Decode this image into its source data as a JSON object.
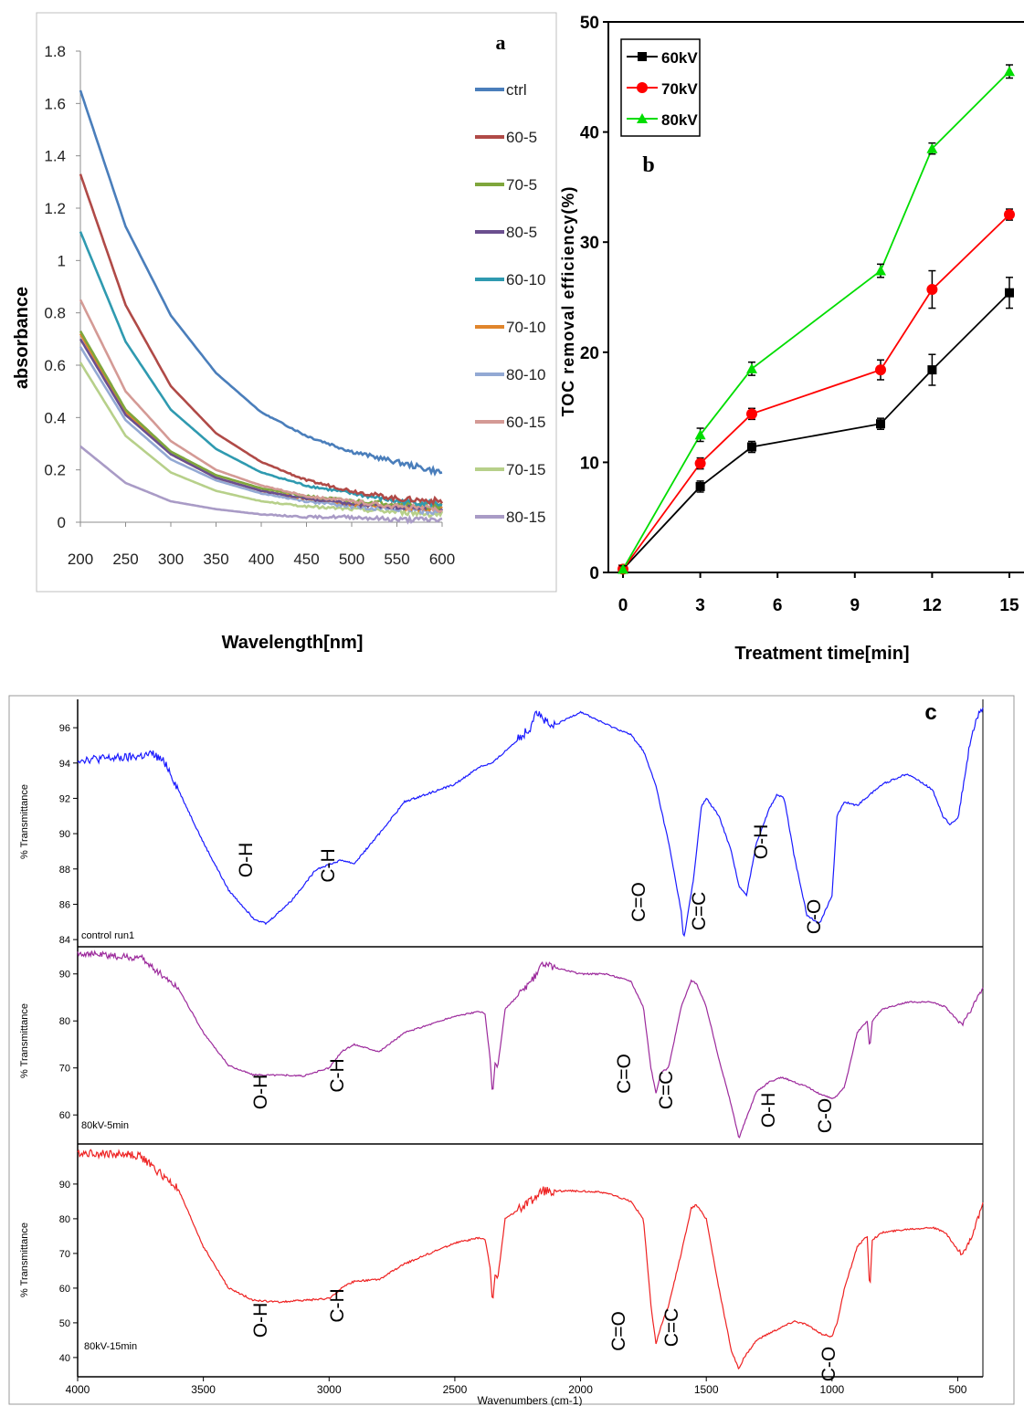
{
  "chart_data": [
    {
      "panel": "a",
      "type": "line",
      "xlabel": "Wavelength[nm]",
      "ylabel": "absorbance",
      "xlim": [
        200,
        600
      ],
      "ylim": [
        0,
        1.8
      ],
      "xticks": [
        "200",
        "250",
        "300",
        "350",
        "400",
        "450",
        "500",
        "550",
        "600"
      ],
      "yticks": [
        "0",
        "0.2",
        "0.4",
        "0.6",
        "0.8",
        "1",
        "1.2",
        "1.4",
        "1.6",
        "1.8"
      ],
      "grid": false,
      "legend_position": "right",
      "series": [
        {
          "name": "ctrl",
          "color": "#4a7ebb",
          "x": [
            200,
            250,
            300,
            350,
            400,
            450,
            500,
            550,
            600
          ],
          "y": [
            1.65,
            1.13,
            0.79,
            0.57,
            0.42,
            0.33,
            0.27,
            0.23,
            0.19
          ]
        },
        {
          "name": "60-5",
          "color": "#b04a47",
          "x": [
            200,
            250,
            300,
            350,
            400,
            450,
            500,
            550,
            600
          ],
          "y": [
            1.33,
            0.83,
            0.52,
            0.34,
            0.23,
            0.16,
            0.12,
            0.09,
            0.08
          ]
        },
        {
          "name": "70-5",
          "color": "#7fa63c",
          "x": [
            200,
            250,
            300,
            350,
            400,
            450,
            500,
            550,
            600
          ],
          "y": [
            0.73,
            0.43,
            0.27,
            0.18,
            0.13,
            0.1,
            0.08,
            0.07,
            0.06
          ]
        },
        {
          "name": "80-5",
          "color": "#6b4f8f",
          "x": [
            200,
            250,
            300,
            350,
            400,
            450,
            500,
            550,
            600
          ],
          "y": [
            0.7,
            0.41,
            0.26,
            0.17,
            0.12,
            0.09,
            0.07,
            0.06,
            0.05
          ]
        },
        {
          "name": "60-10",
          "color": "#2f9ab0",
          "x": [
            200,
            250,
            300,
            350,
            400,
            450,
            500,
            550,
            600
          ],
          "y": [
            1.11,
            0.69,
            0.43,
            0.28,
            0.19,
            0.14,
            0.11,
            0.08,
            0.07
          ]
        },
        {
          "name": "70-10",
          "color": "#e0852c",
          "x": [
            200,
            250,
            300,
            350,
            400,
            450,
            500,
            550,
            600
          ],
          "y": [
            0.72,
            0.42,
            0.26,
            0.17,
            0.12,
            0.09,
            0.07,
            0.06,
            0.05
          ]
        },
        {
          "name": "80-10",
          "color": "#93a9d4",
          "x": [
            200,
            250,
            300,
            350,
            400,
            450,
            500,
            550,
            600
          ],
          "y": [
            0.67,
            0.39,
            0.24,
            0.16,
            0.11,
            0.08,
            0.06,
            0.05,
            0.04
          ]
        },
        {
          "name": "60-15",
          "color": "#d49a95",
          "x": [
            200,
            250,
            300,
            350,
            400,
            450,
            500,
            550,
            600
          ],
          "y": [
            0.85,
            0.5,
            0.31,
            0.2,
            0.14,
            0.1,
            0.08,
            0.06,
            0.05
          ]
        },
        {
          "name": "70-15",
          "color": "#b7d08a",
          "x": [
            200,
            250,
            300,
            350,
            400,
            450,
            500,
            550,
            600
          ],
          "y": [
            0.61,
            0.33,
            0.19,
            0.12,
            0.08,
            0.06,
            0.05,
            0.04,
            0.03
          ]
        },
        {
          "name": "80-15",
          "color": "#a99bc6",
          "x": [
            200,
            250,
            300,
            350,
            400,
            450,
            500,
            550,
            600
          ],
          "y": [
            0.29,
            0.15,
            0.08,
            0.05,
            0.03,
            0.02,
            0.02,
            0.01,
            0.01
          ]
        }
      ]
    },
    {
      "panel": "b",
      "type": "line",
      "xlabel": "Treatment time[min]",
      "ylabel": "TOC removal efficiency(%)",
      "xlim": [
        0,
        15
      ],
      "ylim": [
        0,
        50
      ],
      "xticks": [
        "0",
        "3",
        "6",
        "9",
        "12",
        "15"
      ],
      "yticks": [
        "0",
        "10",
        "20",
        "30",
        "40",
        "50"
      ],
      "grid": false,
      "legend_position": "top-left",
      "series": [
        {
          "name": "60kV",
          "color": "#000000",
          "marker": "square",
          "x": [
            0,
            3,
            5,
            10,
            12,
            15
          ],
          "y": [
            0.3,
            7.8,
            11.4,
            13.5,
            18.4,
            25.4
          ],
          "err": [
            0.3,
            0.5,
            0.5,
            0.5,
            1.4,
            1.4
          ]
        },
        {
          "name": "70kV",
          "color": "#ff0000",
          "marker": "circle",
          "x": [
            0,
            3,
            5,
            10,
            12,
            15
          ],
          "y": [
            0.3,
            9.9,
            14.4,
            18.4,
            25.7,
            32.5
          ],
          "err": [
            0.3,
            0.5,
            0.5,
            0.9,
            1.7,
            0.5
          ]
        },
        {
          "name": "80kV",
          "color": "#00dd00",
          "marker": "triangle",
          "x": [
            0,
            3,
            5,
            10,
            12,
            15
          ],
          "y": [
            0.3,
            12.5,
            18.5,
            27.4,
            38.5,
            45.5
          ],
          "err": [
            0.3,
            0.6,
            0.6,
            0.6,
            0.5,
            0.6
          ]
        }
      ]
    },
    {
      "panel": "c",
      "type": "line",
      "xlabel": "Wavenumbers (cm-1)",
      "xlim": [
        4000,
        400
      ],
      "xticks": [
        "4000",
        "3500",
        "3000",
        "2500",
        "2000",
        "1500",
        "1000",
        "500"
      ],
      "grid": false,
      "subplots": [
        {
          "label": "control run1",
          "ylabel": "% Transmittance",
          "color": "#1a1aff",
          "ylim": [
            83.8,
            97.4
          ],
          "yticks": [
            "84",
            "86",
            "88",
            "90",
            "92",
            "94",
            "96"
          ],
          "x": [
            4000,
            3800,
            3700,
            3650,
            3500,
            3400,
            3300,
            3250,
            3150,
            3050,
            2950,
            2900,
            2800,
            2700,
            2500,
            2400,
            2350,
            2200,
            2180,
            2120,
            2000,
            1900,
            1800,
            1750,
            1700,
            1650,
            1600,
            1590,
            1550,
            1520,
            1500,
            1450,
            1400,
            1370,
            1340,
            1300,
            1250,
            1220,
            1190,
            1150,
            1100,
            1050,
            1000,
            980,
            950,
            900,
            800,
            700,
            600,
            560,
            530,
            500,
            480,
            450,
            420,
            400
          ],
          "y": [
            94.2,
            94.3,
            94.5,
            94.0,
            89.5,
            86.8,
            85.2,
            84.9,
            86.2,
            88.0,
            88.5,
            88.3,
            90.0,
            91.8,
            92.8,
            93.8,
            94.0,
            96.0,
            97.0,
            96.0,
            96.9,
            96.2,
            95.6,
            94.7,
            92.7,
            89.5,
            85.6,
            84.0,
            87.5,
            91.5,
            92.0,
            91.0,
            89.0,
            87.0,
            86.5,
            89.5,
            91.4,
            92.2,
            92.0,
            88.7,
            85.4,
            84.9,
            86.5,
            91.0,
            91.8,
            91.6,
            92.8,
            93.4,
            92.5,
            91.0,
            90.5,
            90.9,
            92.5,
            95.3,
            96.7,
            97.0
          ],
          "annotations": [
            "O-H",
            "C-H",
            "C=O",
            "C=C",
            "O-H",
            "C-O"
          ]
        },
        {
          "label": "80kV-5min",
          "ylabel": "% Transmittance",
          "color": "#9c2a9c",
          "ylim": [
            54.6,
            95.0
          ],
          "yticks": [
            "60",
            "70",
            "80",
            "90"
          ],
          "x": [
            4000,
            3800,
            3750,
            3600,
            3500,
            3400,
            3300,
            3200,
            3100,
            3000,
            2950,
            2900,
            2800,
            2700,
            2500,
            2400,
            2380,
            2360,
            2350,
            2340,
            2330,
            2300,
            2200,
            2150,
            2000,
            1900,
            1800,
            1750,
            1720,
            1700,
            1680,
            1650,
            1600,
            1560,
            1540,
            1500,
            1450,
            1400,
            1370,
            1350,
            1300,
            1250,
            1200,
            1150,
            1100,
            1050,
            1000,
            980,
            950,
            900,
            860,
            850,
            840,
            800,
            700,
            600,
            550,
            500,
            480,
            450,
            400
          ],
          "y": [
            94.5,
            93.5,
            93.5,
            87.0,
            77.5,
            70.5,
            68.5,
            68.5,
            68.3,
            70.0,
            73.5,
            75.0,
            73.5,
            77.5,
            81.0,
            82.0,
            81.5,
            72.0,
            64.0,
            71.0,
            70.0,
            82.5,
            88.0,
            92.0,
            90.0,
            90.0,
            88.5,
            83.0,
            70.0,
            64.5,
            69.0,
            70.0,
            83.0,
            88.5,
            88.0,
            83.0,
            72.0,
            62.0,
            55.0,
            58.0,
            65.0,
            67.0,
            68.0,
            67.0,
            66.0,
            64.5,
            63.5,
            64.0,
            66.0,
            77.5,
            80.0,
            74.0,
            80.0,
            82.5,
            84.0,
            84.0,
            83.0,
            80.0,
            79.5,
            82.0,
            87.0
          ],
          "annotations": [
            "O-H",
            "C-H",
            "C=O",
            "C=C",
            "O-H",
            "C-O"
          ]
        },
        {
          "label": "80kV-15min",
          "ylabel": "% Transmittance",
          "color": "#ee2222",
          "ylim": [
            35.5,
            100.5
          ],
          "yticks": [
            "40",
            "50",
            "60",
            "70",
            "80",
            "90"
          ],
          "x": [
            4000,
            3800,
            3750,
            3600,
            3500,
            3400,
            3300,
            3200,
            3100,
            3000,
            2950,
            2900,
            2800,
            2700,
            2500,
            2400,
            2380,
            2360,
            2350,
            2340,
            2330,
            2300,
            2200,
            2150,
            2000,
            1900,
            1800,
            1750,
            1720,
            1700,
            1680,
            1650,
            1600,
            1560,
            1540,
            1500,
            1450,
            1400,
            1370,
            1350,
            1300,
            1250,
            1150,
            1100,
            1050,
            1000,
            980,
            950,
            900,
            860,
            850,
            840,
            800,
            700,
            600,
            550,
            500,
            480,
            450,
            400
          ],
          "y": [
            99.0,
            98.5,
            98.0,
            88.5,
            72.0,
            60.0,
            56.5,
            56.0,
            56.5,
            57.0,
            60.0,
            62.0,
            62.5,
            67.0,
            73.0,
            74.5,
            74.0,
            66.0,
            55.5,
            64.0,
            62.5,
            80.0,
            85.0,
            88.0,
            88.0,
            87.5,
            85.0,
            80.0,
            55.0,
            44.0,
            49.0,
            55.0,
            70.0,
            83.0,
            84.0,
            80.0,
            60.0,
            42.0,
            36.5,
            40.0,
            45.0,
            47.0,
            50.5,
            49.5,
            47.0,
            46.0,
            50.0,
            60.0,
            72.0,
            75.0,
            59.0,
            74.0,
            76.0,
            77.0,
            77.5,
            76.0,
            71.0,
            70.0,
            74.0,
            84.0
          ],
          "annotations": [
            "O-H",
            "C-H",
            "C=O",
            "C=C",
            "C-O"
          ]
        }
      ]
    }
  ]
}
